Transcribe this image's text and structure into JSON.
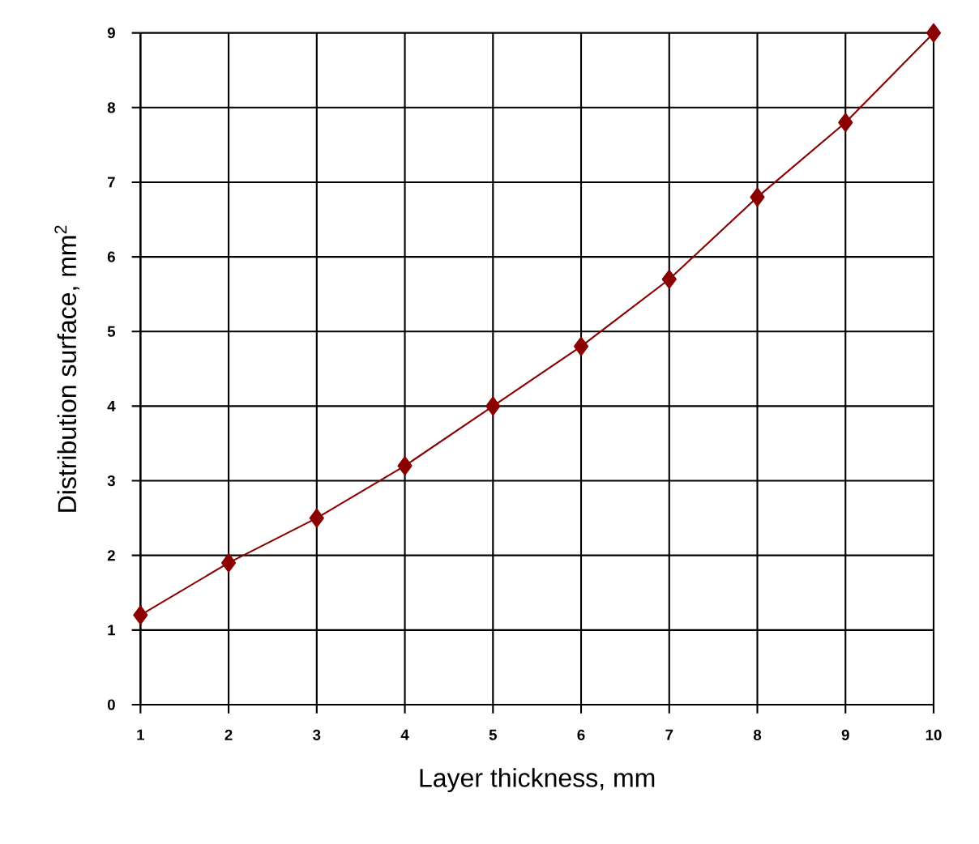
{
  "chart_data": {
    "type": "line",
    "xlabel": "Layer thickness, mm",
    "ylabel": "Distribution surface, mm$^{2}$",
    "x": [
      1,
      2,
      3,
      4,
      5,
      6,
      7,
      8,
      9,
      10
    ],
    "series": [
      {
        "color": "#8b0000",
        "values": [
          1.2,
          1.9,
          2.5,
          3.2,
          4.0,
          4.8,
          5.7,
          6.8,
          7.8,
          9.0
        ]
      }
    ],
    "xlim": [
      1,
      10
    ],
    "ylim": [
      0,
      9
    ],
    "xticks": [
      1,
      2,
      3,
      4,
      5,
      6,
      7,
      8,
      9,
      10
    ],
    "yticks": [
      0,
      1,
      2,
      3,
      4,
      5,
      6,
      7,
      8,
      9
    ],
    "grid": true,
    "marker": "diamond",
    "line_style": "solid"
  }
}
